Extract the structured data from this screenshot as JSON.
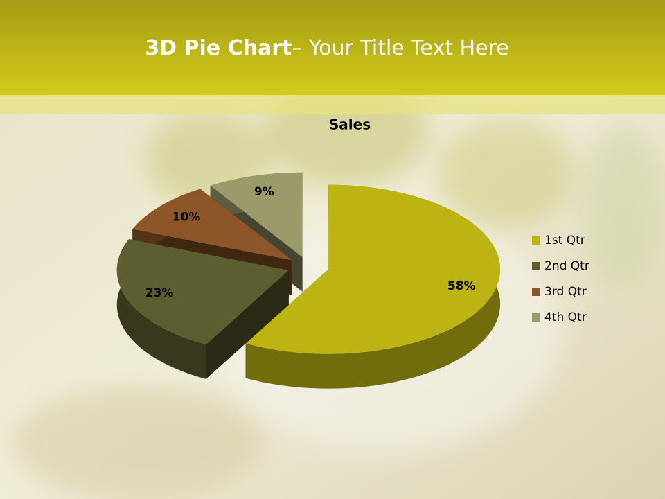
{
  "header": {
    "title_bold": "3D Pie Chart",
    "title_rest": "– Your Title Text Here"
  },
  "chart_data": {
    "type": "pie",
    "title": "Sales",
    "categories": [
      "1st Qtr",
      "2nd Qtr",
      "3rd Qtr",
      "4th Qtr"
    ],
    "values": [
      58,
      23,
      10,
      9
    ],
    "value_labels": [
      "58%",
      "23%",
      "10%",
      "9%"
    ],
    "colors": [
      "#bdb414",
      "#5d5e30",
      "#8c5628",
      "#9a9a6a"
    ],
    "legend": "right"
  }
}
